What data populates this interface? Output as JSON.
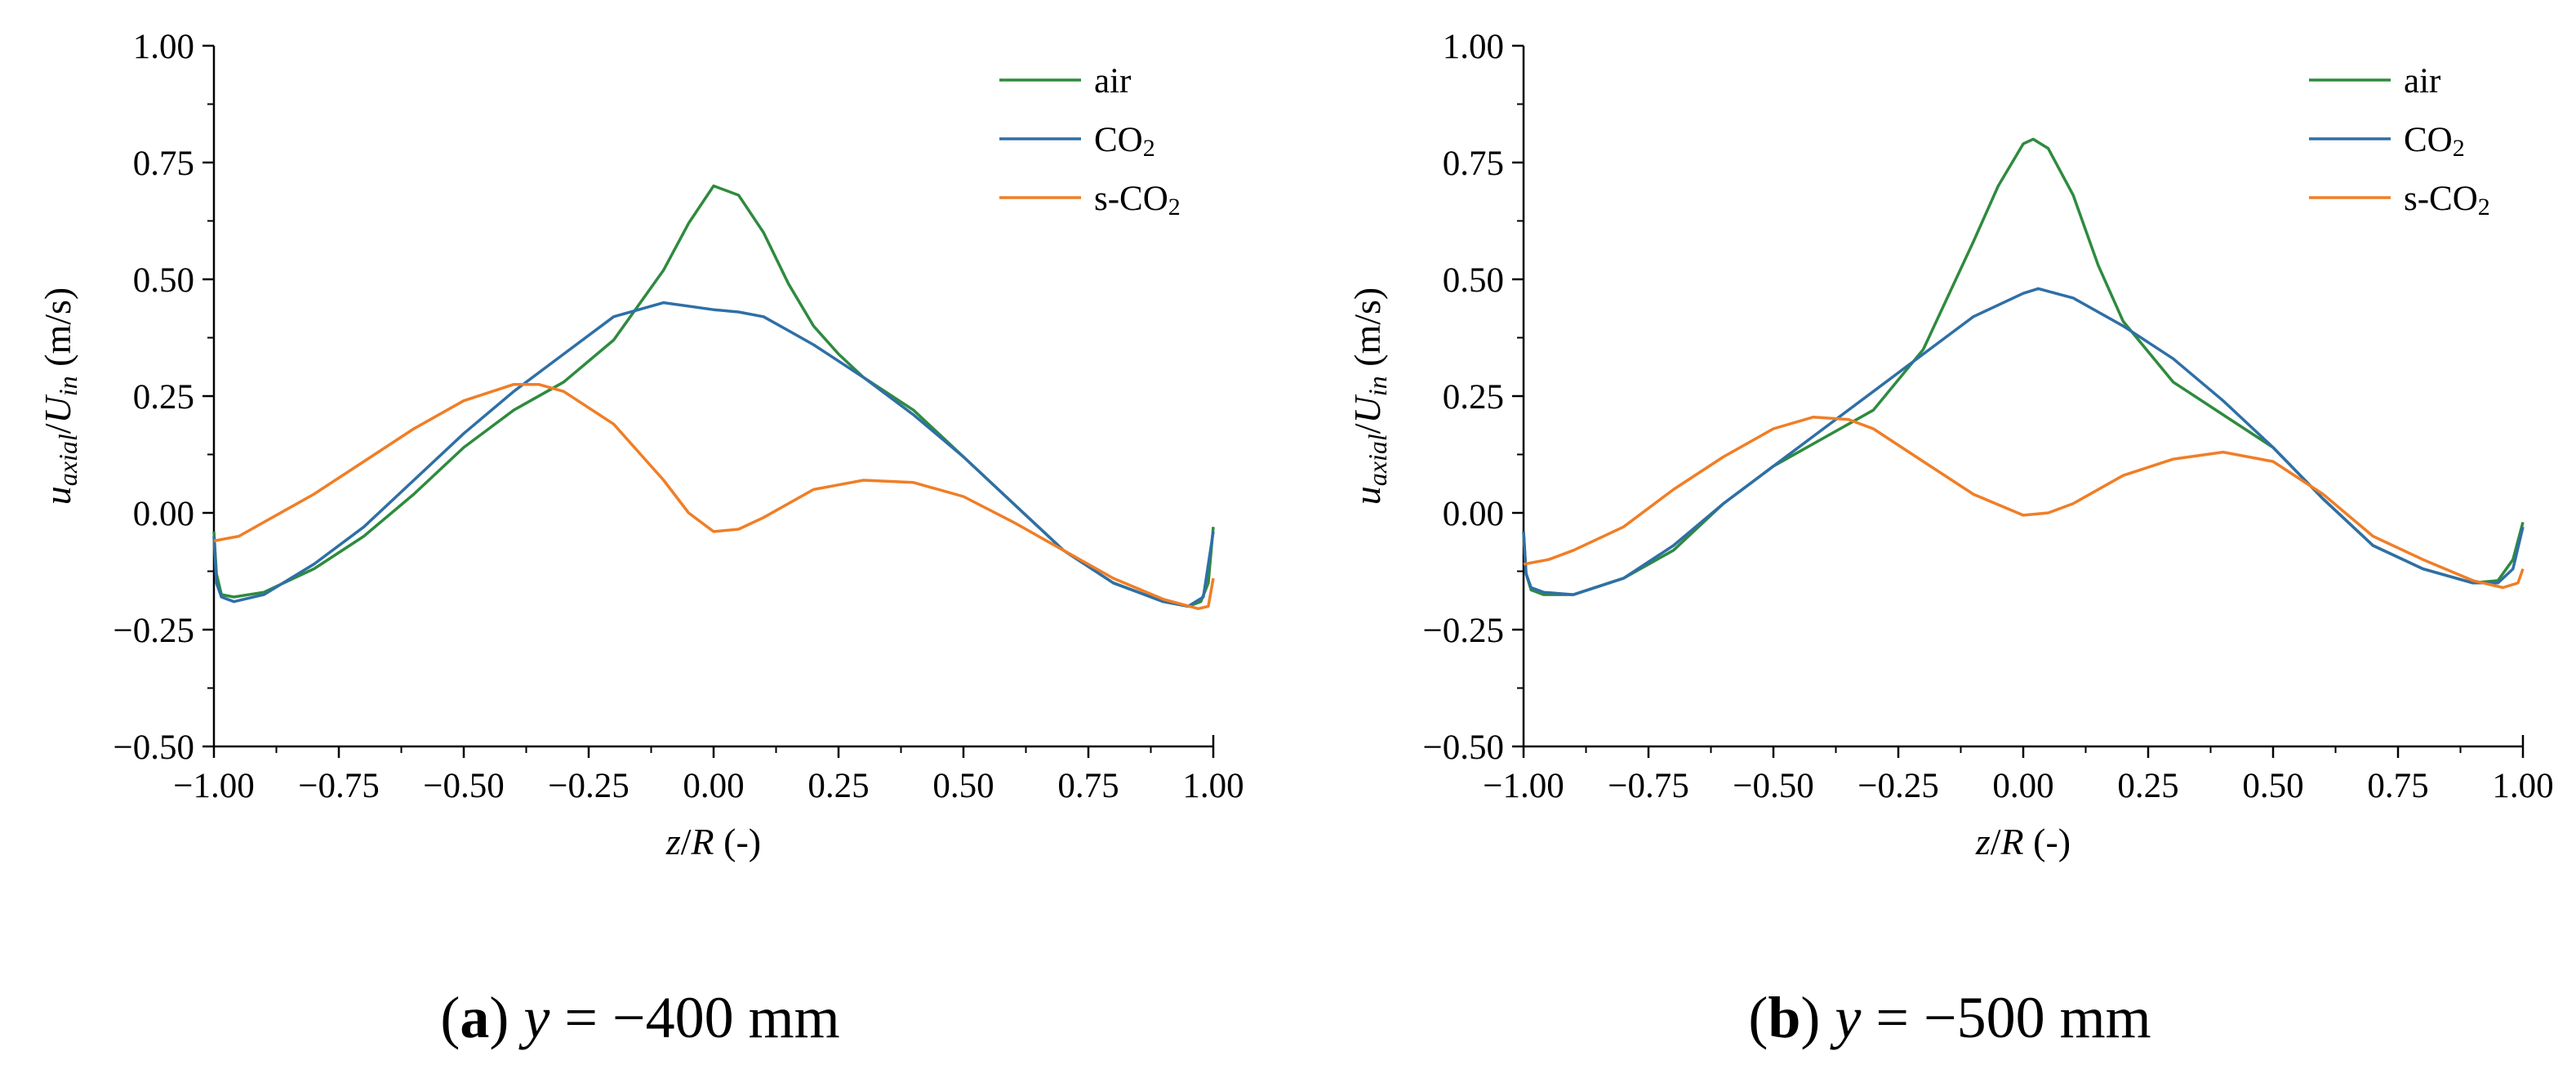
{
  "chart_data": [
    {
      "type": "line",
      "caption": {
        "letter": "a",
        "text": "y = −400 mm"
      },
      "xlabel": "z/R (-)",
      "ylabel": "u_axial/U_in (m/s)",
      "xlim": [
        -1.0,
        1.0
      ],
      "ylim": [
        -0.5,
        1.0
      ],
      "xticks": [
        "−1.00",
        "−0.75",
        "−0.50",
        "−0.25",
        "0.00",
        "0.25",
        "0.50",
        "0.75",
        "1.00"
      ],
      "yticks": [
        "−0.50",
        "−0.25",
        "0.00",
        "0.25",
        "0.50",
        "0.75",
        "1.00"
      ],
      "legend": "top-right",
      "grid": false,
      "series": [
        {
          "name": "air",
          "color": "#2e8b3e",
          "points": [
            [
              -1.0,
              -0.04
            ],
            [
              -0.995,
              -0.13
            ],
            [
              -0.985,
              -0.175
            ],
            [
              -0.96,
              -0.18
            ],
            [
              -0.9,
              -0.17
            ],
            [
              -0.8,
              -0.12
            ],
            [
              -0.7,
              -0.05
            ],
            [
              -0.6,
              0.04
            ],
            [
              -0.5,
              0.14
            ],
            [
              -0.4,
              0.22
            ],
            [
              -0.3,
              0.28
            ],
            [
              -0.2,
              0.37
            ],
            [
              -0.1,
              0.52
            ],
            [
              -0.05,
              0.62
            ],
            [
              0.0,
              0.7
            ],
            [
              0.05,
              0.68
            ],
            [
              0.1,
              0.6
            ],
            [
              0.15,
              0.49
            ],
            [
              0.2,
              0.4
            ],
            [
              0.25,
              0.34
            ],
            [
              0.3,
              0.29
            ],
            [
              0.4,
              0.22
            ],
            [
              0.5,
              0.12
            ],
            [
              0.6,
              0.02
            ],
            [
              0.7,
              -0.08
            ],
            [
              0.8,
              -0.15
            ],
            [
              0.9,
              -0.19
            ],
            [
              0.95,
              -0.2
            ],
            [
              0.975,
              -0.19
            ],
            [
              0.99,
              -0.15
            ],
            [
              1.0,
              -0.03
            ]
          ]
        },
        {
          "name": "CO2",
          "color": "#2f6fa6",
          "points": [
            [
              -1.0,
              -0.05
            ],
            [
              -0.995,
              -0.15
            ],
            [
              -0.985,
              -0.18
            ],
            [
              -0.96,
              -0.19
            ],
            [
              -0.9,
              -0.175
            ],
            [
              -0.8,
              -0.11
            ],
            [
              -0.7,
              -0.03
            ],
            [
              -0.6,
              0.07
            ],
            [
              -0.5,
              0.17
            ],
            [
              -0.4,
              0.26
            ],
            [
              -0.3,
              0.34
            ],
            [
              -0.2,
              0.42
            ],
            [
              -0.1,
              0.45
            ],
            [
              0.0,
              0.435
            ],
            [
              0.05,
              0.43
            ],
            [
              0.1,
              0.42
            ],
            [
              0.15,
              0.39
            ],
            [
              0.2,
              0.36
            ],
            [
              0.3,
              0.29
            ],
            [
              0.4,
              0.21
            ],
            [
              0.5,
              0.12
            ],
            [
              0.6,
              0.02
            ],
            [
              0.7,
              -0.08
            ],
            [
              0.8,
              -0.15
            ],
            [
              0.9,
              -0.19
            ],
            [
              0.95,
              -0.2
            ],
            [
              0.98,
              -0.18
            ],
            [
              1.0,
              -0.04
            ]
          ]
        },
        {
          "name": "s-CO2",
          "color": "#f07e26",
          "points": [
            [
              -1.0,
              -0.06
            ],
            [
              -0.95,
              -0.05
            ],
            [
              -0.9,
              -0.02
            ],
            [
              -0.8,
              0.04
            ],
            [
              -0.7,
              0.11
            ],
            [
              -0.6,
              0.18
            ],
            [
              -0.5,
              0.24
            ],
            [
              -0.4,
              0.275
            ],
            [
              -0.35,
              0.275
            ],
            [
              -0.3,
              0.26
            ],
            [
              -0.2,
              0.19
            ],
            [
              -0.1,
              0.07
            ],
            [
              -0.05,
              0.0
            ],
            [
              0.0,
              -0.04
            ],
            [
              0.05,
              -0.035
            ],
            [
              0.1,
              -0.01
            ],
            [
              0.2,
              0.05
            ],
            [
              0.3,
              0.07
            ],
            [
              0.4,
              0.065
            ],
            [
              0.5,
              0.035
            ],
            [
              0.6,
              -0.02
            ],
            [
              0.7,
              -0.08
            ],
            [
              0.8,
              -0.14
            ],
            [
              0.9,
              -0.185
            ],
            [
              0.97,
              -0.205
            ],
            [
              0.99,
              -0.2
            ],
            [
              1.0,
              -0.14
            ]
          ]
        }
      ]
    },
    {
      "type": "line",
      "caption": {
        "letter": "b",
        "text": "y = −500 mm"
      },
      "xlabel": "z/R (-)",
      "ylabel": "u_axial/U_in (m/s)",
      "xlim": [
        -1.0,
        1.0
      ],
      "ylim": [
        -0.5,
        1.0
      ],
      "xticks": [
        "−1.00",
        "−0.75",
        "−0.50",
        "−0.25",
        "0.00",
        "0.25",
        "0.50",
        "0.75",
        "1.00"
      ],
      "yticks": [
        "−0.50",
        "−0.25",
        "0.00",
        "0.25",
        "0.50",
        "0.75",
        "1.00"
      ],
      "legend": "top-right",
      "grid": false,
      "series": [
        {
          "name": "air",
          "color": "#2e8b3e",
          "points": [
            [
              -1.0,
              -0.04
            ],
            [
              -0.995,
              -0.13
            ],
            [
              -0.985,
              -0.165
            ],
            [
              -0.96,
              -0.175
            ],
            [
              -0.9,
              -0.175
            ],
            [
              -0.8,
              -0.14
            ],
            [
              -0.7,
              -0.08
            ],
            [
              -0.6,
              0.02
            ],
            [
              -0.5,
              0.1
            ],
            [
              -0.4,
              0.16
            ],
            [
              -0.3,
              0.22
            ],
            [
              -0.2,
              0.35
            ],
            [
              -0.1,
              0.58
            ],
            [
              -0.05,
              0.7
            ],
            [
              0.0,
              0.79
            ],
            [
              0.02,
              0.8
            ],
            [
              0.05,
              0.78
            ],
            [
              0.1,
              0.68
            ],
            [
              0.15,
              0.53
            ],
            [
              0.2,
              0.41
            ],
            [
              0.3,
              0.28
            ],
            [
              0.4,
              0.21
            ],
            [
              0.5,
              0.14
            ],
            [
              0.6,
              0.03
            ],
            [
              0.7,
              -0.07
            ],
            [
              0.8,
              -0.12
            ],
            [
              0.9,
              -0.15
            ],
            [
              0.95,
              -0.145
            ],
            [
              0.98,
              -0.1
            ],
            [
              1.0,
              -0.02
            ]
          ]
        },
        {
          "name": "CO2",
          "color": "#2f6fa6",
          "points": [
            [
              -1.0,
              -0.04
            ],
            [
              -0.995,
              -0.13
            ],
            [
              -0.985,
              -0.16
            ],
            [
              -0.96,
              -0.17
            ],
            [
              -0.9,
              -0.175
            ],
            [
              -0.8,
              -0.14
            ],
            [
              -0.7,
              -0.07
            ],
            [
              -0.6,
              0.02
            ],
            [
              -0.5,
              0.1
            ],
            [
              -0.4,
              0.18
            ],
            [
              -0.3,
              0.26
            ],
            [
              -0.2,
              0.34
            ],
            [
              -0.1,
              0.42
            ],
            [
              0.0,
              0.47
            ],
            [
              0.03,
              0.48
            ],
            [
              0.1,
              0.46
            ],
            [
              0.2,
              0.4
            ],
            [
              0.3,
              0.33
            ],
            [
              0.4,
              0.24
            ],
            [
              0.5,
              0.14
            ],
            [
              0.6,
              0.03
            ],
            [
              0.7,
              -0.07
            ],
            [
              0.8,
              -0.12
            ],
            [
              0.9,
              -0.15
            ],
            [
              0.95,
              -0.15
            ],
            [
              0.98,
              -0.12
            ],
            [
              1.0,
              -0.03
            ]
          ]
        },
        {
          "name": "s-CO2",
          "color": "#f07e26",
          "points": [
            [
              -1.0,
              -0.11
            ],
            [
              -0.95,
              -0.1
            ],
            [
              -0.9,
              -0.08
            ],
            [
              -0.8,
              -0.03
            ],
            [
              -0.7,
              0.05
            ],
            [
              -0.6,
              0.12
            ],
            [
              -0.5,
              0.18
            ],
            [
              -0.42,
              0.205
            ],
            [
              -0.35,
              0.2
            ],
            [
              -0.3,
              0.18
            ],
            [
              -0.2,
              0.11
            ],
            [
              -0.1,
              0.04
            ],
            [
              0.0,
              -0.005
            ],
            [
              0.05,
              0.0
            ],
            [
              0.1,
              0.02
            ],
            [
              0.2,
              0.08
            ],
            [
              0.3,
              0.115
            ],
            [
              0.4,
              0.13
            ],
            [
              0.5,
              0.11
            ],
            [
              0.6,
              0.04
            ],
            [
              0.7,
              -0.05
            ],
            [
              0.8,
              -0.1
            ],
            [
              0.9,
              -0.145
            ],
            [
              0.96,
              -0.16
            ],
            [
              0.99,
              -0.15
            ],
            [
              1.0,
              -0.12
            ]
          ]
        }
      ]
    }
  ]
}
